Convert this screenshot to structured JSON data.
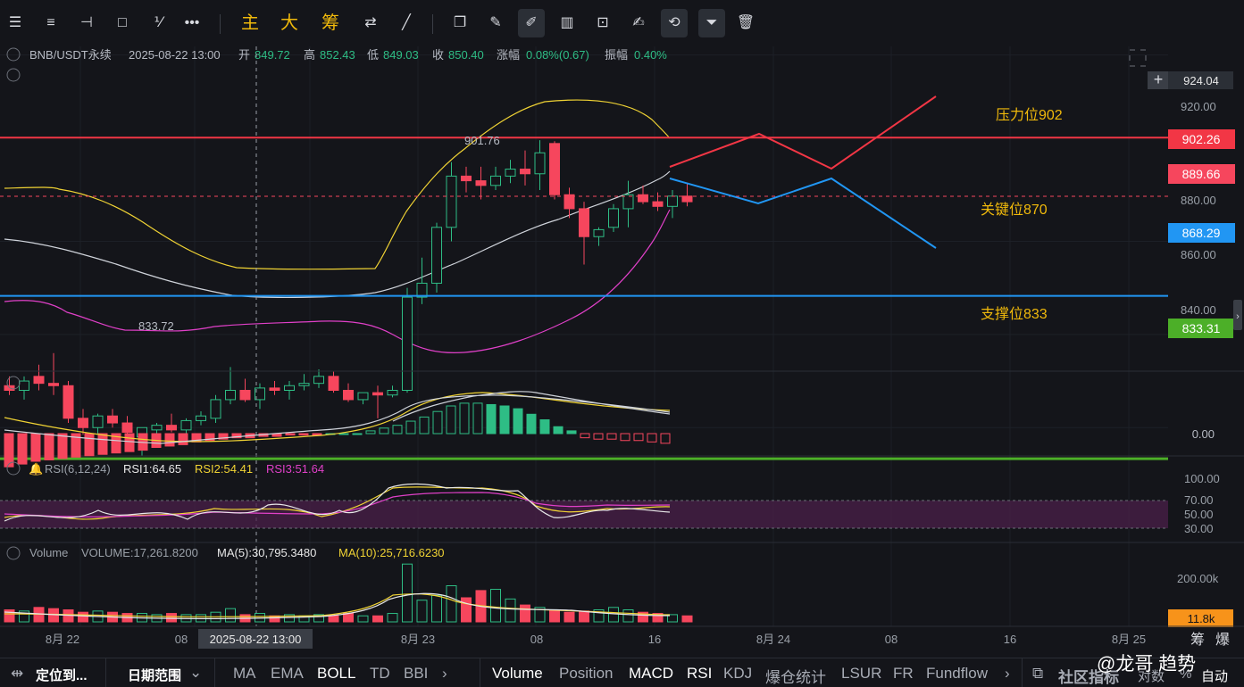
{
  "toolbar": {
    "main": "主",
    "big": "大",
    "chips": "筹"
  },
  "header": {
    "symbol": "BNB/USDT永续",
    "datetime": "2025-08-22 13:00",
    "open_label": "开",
    "open": "849.72",
    "high_label": "高",
    "high": "852.43",
    "low_label": "低",
    "low": "849.03",
    "close_label": "收",
    "close": "850.40",
    "change_label": "涨幅",
    "change": "0.08%(0.67)",
    "amp_label": "振幅",
    "amp": "0.40%"
  },
  "price_axis": {
    "ticks": [
      "920.00",
      "900.00",
      "880.00",
      "860.00",
      "840.00"
    ],
    "crosshair_price": "924.04",
    "resistance_tag": "902.26",
    "current_tag": "889.66",
    "key_tag": "868.29",
    "support_tag": "833.31"
  },
  "annotations": {
    "resistance": "压力位902",
    "key": "关键位870",
    "support": "支撑位833",
    "high_mark": "901.76",
    "low_mark": "833.72"
  },
  "macd": {
    "zero": "0.00"
  },
  "rsi": {
    "label": "RSI(6,12,24)",
    "rsi1": "RSI1:64.65",
    "rsi2": "RSI2:54.41",
    "rsi3": "RSI3:51.64",
    "ticks": [
      "100.00",
      "70.00",
      "50.00",
      "30.00"
    ]
  },
  "volume": {
    "label": "Volume",
    "value": "VOLUME:17,261.8200",
    "ma5": "MA(5):30,795.3480",
    "ma10": "MA(10):25,716.6230",
    "ticks": [
      "200.00k"
    ],
    "current": "11.8k"
  },
  "time_axis": {
    "labels": [
      "8月 22",
      "08",
      "8月 23",
      "08",
      "16",
      "8月 24",
      "08",
      "16",
      "8月 25"
    ],
    "crosshair_time": "2025-08-22 13:00",
    "right": [
      "筹",
      "爆"
    ]
  },
  "bottom_bar": {
    "locate": "定位到...",
    "date_range": "日期范围",
    "main_inds": [
      "MA",
      "EMA",
      "BOLL",
      "TD",
      "BBI"
    ],
    "sub_inds": [
      "Volume",
      "Position",
      "MACD",
      "RSI",
      "KDJ",
      "爆仓统计",
      "LSUR",
      "FR",
      "Fundflow"
    ],
    "community": "社区指标",
    "log": "对数",
    "pct": "%",
    "auto": "自动"
  },
  "watermark": "@龙哥 趋势",
  "colors": {
    "up": "#2ebd85",
    "down": "#f6465d",
    "resistance": "#f23645",
    "key": "#2196f3",
    "support": "#4caf28",
    "annotation": "#f0b90b"
  },
  "chart_data": {
    "type": "candlestick",
    "price_range": [
      826,
      927
    ],
    "candles": [
      [
        849.0,
        851.0,
        847.0,
        848.0
      ],
      [
        848.0,
        851.0,
        846.0,
        850.0
      ],
      [
        851.0,
        853.5,
        848.0,
        849.5
      ],
      [
        849.5,
        856.0,
        847.0,
        849.0
      ],
      [
        849.0,
        850.0,
        841.0,
        842.0
      ],
      [
        842.0,
        844.0,
        838.5,
        840.0
      ],
      [
        840.0,
        843.0,
        838.5,
        842.5
      ],
      [
        842.5,
        844.0,
        840.0,
        841.0
      ],
      [
        841.0,
        842.5,
        837.0,
        839.0
      ],
      [
        838.0,
        840.0,
        834.0,
        840.0
      ],
      [
        839.5,
        841.0,
        837.5,
        840.5
      ],
      [
        840.5,
        843.0,
        839.0,
        839.5
      ],
      [
        839.5,
        842.0,
        837.0,
        841.5
      ],
      [
        841.5,
        843.5,
        840.5,
        842.5
      ],
      [
        842.0,
        847.0,
        841.0,
        846.0
      ],
      [
        846.0,
        853.0,
        845.0,
        848.0
      ],
      [
        848.0,
        850.5,
        845.5,
        846.0
      ],
      [
        846.0,
        849.5,
        844.0,
        848.5
      ],
      [
        848.5,
        850.0,
        847.0,
        848.0
      ],
      [
        848.0,
        850.0,
        846.0,
        849.0
      ],
      [
        849.0,
        851.5,
        848.0,
        849.5
      ],
      [
        849.5,
        852.5,
        848.5,
        851.0
      ],
      [
        851.0,
        852.0,
        847.5,
        848.0
      ],
      [
        848.0,
        849.5,
        845.5,
        846.0
      ],
      [
        846.0,
        847.5,
        845.0,
        847.5
      ],
      [
        847.5,
        849.0,
        842.0,
        847.0
      ],
      [
        847.0,
        849.0,
        846.5,
        848.0
      ],
      [
        848.0,
        870.0,
        847.5,
        868.0
      ],
      [
        868.0,
        876.5,
        866.5,
        871.0
      ],
      [
        871.0,
        884.0,
        869.0,
        883.0
      ],
      [
        883.0,
        897.0,
        880.0,
        894.0
      ],
      [
        894.0,
        896.0,
        890.5,
        893.0
      ],
      [
        893.0,
        896.0,
        889.0,
        892.0
      ],
      [
        892.0,
        896.0,
        891.0,
        894.0
      ],
      [
        894.0,
        897.5,
        892.5,
        895.5
      ],
      [
        895.5,
        899.5,
        892.0,
        894.5
      ],
      [
        894.5,
        901.7,
        891.0,
        899.0
      ],
      [
        901.0,
        901.5,
        889.0,
        890.0
      ],
      [
        890.0,
        891.5,
        885.0,
        887.0
      ],
      [
        887.0,
        888.5,
        875.0,
        881.0
      ],
      [
        881.0,
        883.0,
        879.0,
        882.5
      ],
      [
        883.0,
        888.0,
        882.0,
        887.0
      ],
      [
        887.0,
        893.0,
        883.0,
        890.0
      ],
      [
        890.0,
        892.0,
        888.0,
        888.5
      ],
      [
        888.5,
        890.5,
        886.5,
        887.5
      ],
      [
        887.5,
        891.0,
        885.0,
        889.7
      ],
      [
        889.7,
        892.5,
        887.5,
        888.5
      ]
    ],
    "levels": {
      "resistance": 902.26,
      "key": 868.29,
      "support": 833.31,
      "current": 889.66
    },
    "crosshair": {
      "price": 924.04
    },
    "rsi_range": [
      0,
      100
    ],
    "volume_range": [
      0,
      260000
    ]
  }
}
